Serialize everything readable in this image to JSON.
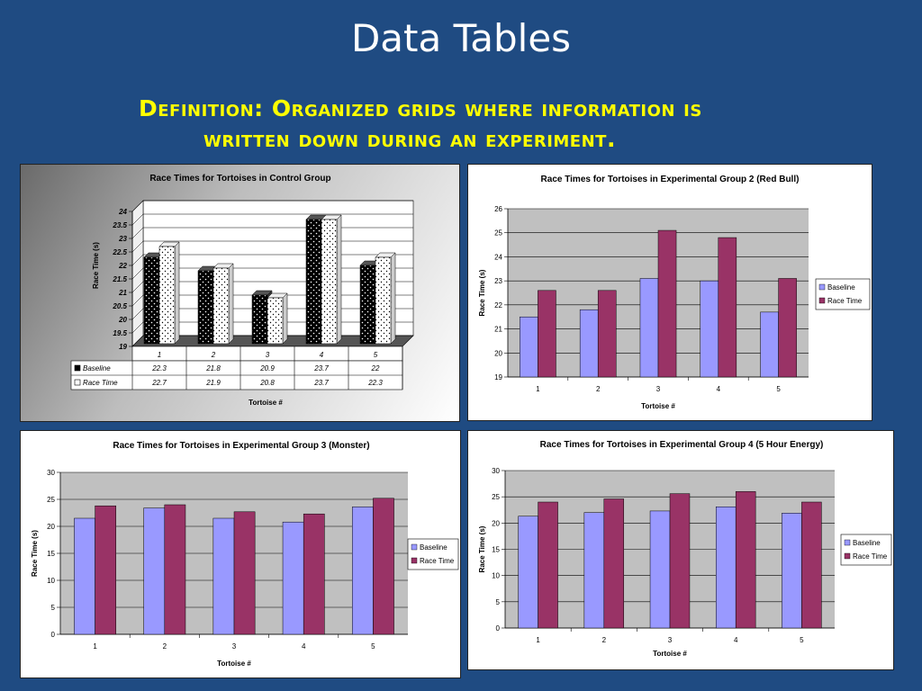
{
  "slide": {
    "title": "Data Tables",
    "definition_line1": "Definition:  Organized grids where information is",
    "definition_line2": "written down during an experiment."
  },
  "colors": {
    "baseline": "#9999ff",
    "race_time": "#993366",
    "plot_bg": "#c0c0c0"
  },
  "chart_data": [
    {
      "type": "bar",
      "title": "Race Times for Tortoises in Control Group",
      "xlabel": "Tortoise #",
      "ylabel": "Race Time (s)",
      "categories": [
        "1",
        "2",
        "3",
        "4",
        "5"
      ],
      "series": [
        {
          "name": "Baseline",
          "values": [
            22.3,
            21.8,
            20.9,
            23.7,
            22
          ]
        },
        {
          "name": "Race Time",
          "values": [
            22.7,
            21.9,
            20.8,
            23.7,
            22.3
          ]
        }
      ],
      "ylim": [
        19,
        24
      ],
      "yticks": [
        "19",
        "19.5",
        "20",
        "20.5",
        "21",
        "21.5",
        "22",
        "22.5",
        "23",
        "23.5",
        "24"
      ],
      "table_values": [
        [
          "22.3",
          "21.8",
          "20.9",
          "23.7",
          "22"
        ],
        [
          "22.7",
          "21.9",
          "20.8",
          "23.7",
          "22.3"
        ]
      ],
      "style": "3d-with-data-table"
    },
    {
      "type": "bar",
      "title": "Race Times for Tortoises in Experimental Group 2 (Red Bull)",
      "xlabel": "Tortoise #",
      "ylabel": "Race Time (s)",
      "categories": [
        "1",
        "2",
        "3",
        "4",
        "5"
      ],
      "series": [
        {
          "name": "Baseline",
          "values": [
            21.5,
            21.8,
            23.1,
            23,
            21.7
          ]
        },
        {
          "name": "Race Time",
          "values": [
            22.6,
            22.6,
            25.1,
            24.8,
            23.1
          ]
        }
      ],
      "ylim": [
        19,
        26
      ],
      "yticks": [
        "19",
        "20",
        "21",
        "22",
        "23",
        "24",
        "25",
        "26"
      ],
      "legend": "right"
    },
    {
      "type": "bar",
      "title": "Race Times for Tortoises in Experimental Group 3 (Monster)",
      "xlabel": "Tortoise #",
      "ylabel": "Race Time (s)",
      "categories": [
        "1",
        "2",
        "3",
        "4",
        "5"
      ],
      "series": [
        {
          "name": "Baseline",
          "values": [
            21.5,
            23.4,
            21.5,
            20.8,
            23.6
          ]
        },
        {
          "name": "Race Time",
          "values": [
            23.8,
            24,
            22.7,
            22.3,
            25.2
          ]
        }
      ],
      "ylim": [
        0,
        30
      ],
      "yticks": [
        "0",
        "5",
        "10",
        "15",
        "20",
        "25",
        "30"
      ],
      "legend": "right"
    },
    {
      "type": "bar",
      "title": "Race Times for Tortoises in Experimental Group 4 (5 Hour Energy)",
      "xlabel": "Tortoise #",
      "ylabel": "Race Time (s)",
      "categories": [
        "1",
        "2",
        "3",
        "4",
        "5"
      ],
      "series": [
        {
          "name": "Baseline",
          "values": [
            21.3,
            22,
            22.3,
            23.1,
            21.9
          ]
        },
        {
          "name": "Race Time",
          "values": [
            24,
            24.6,
            25.6,
            26,
            24
          ]
        }
      ],
      "ylim": [
        0,
        30
      ],
      "yticks": [
        "0",
        "5",
        "10",
        "15",
        "20",
        "25",
        "30"
      ],
      "legend": "right"
    }
  ]
}
